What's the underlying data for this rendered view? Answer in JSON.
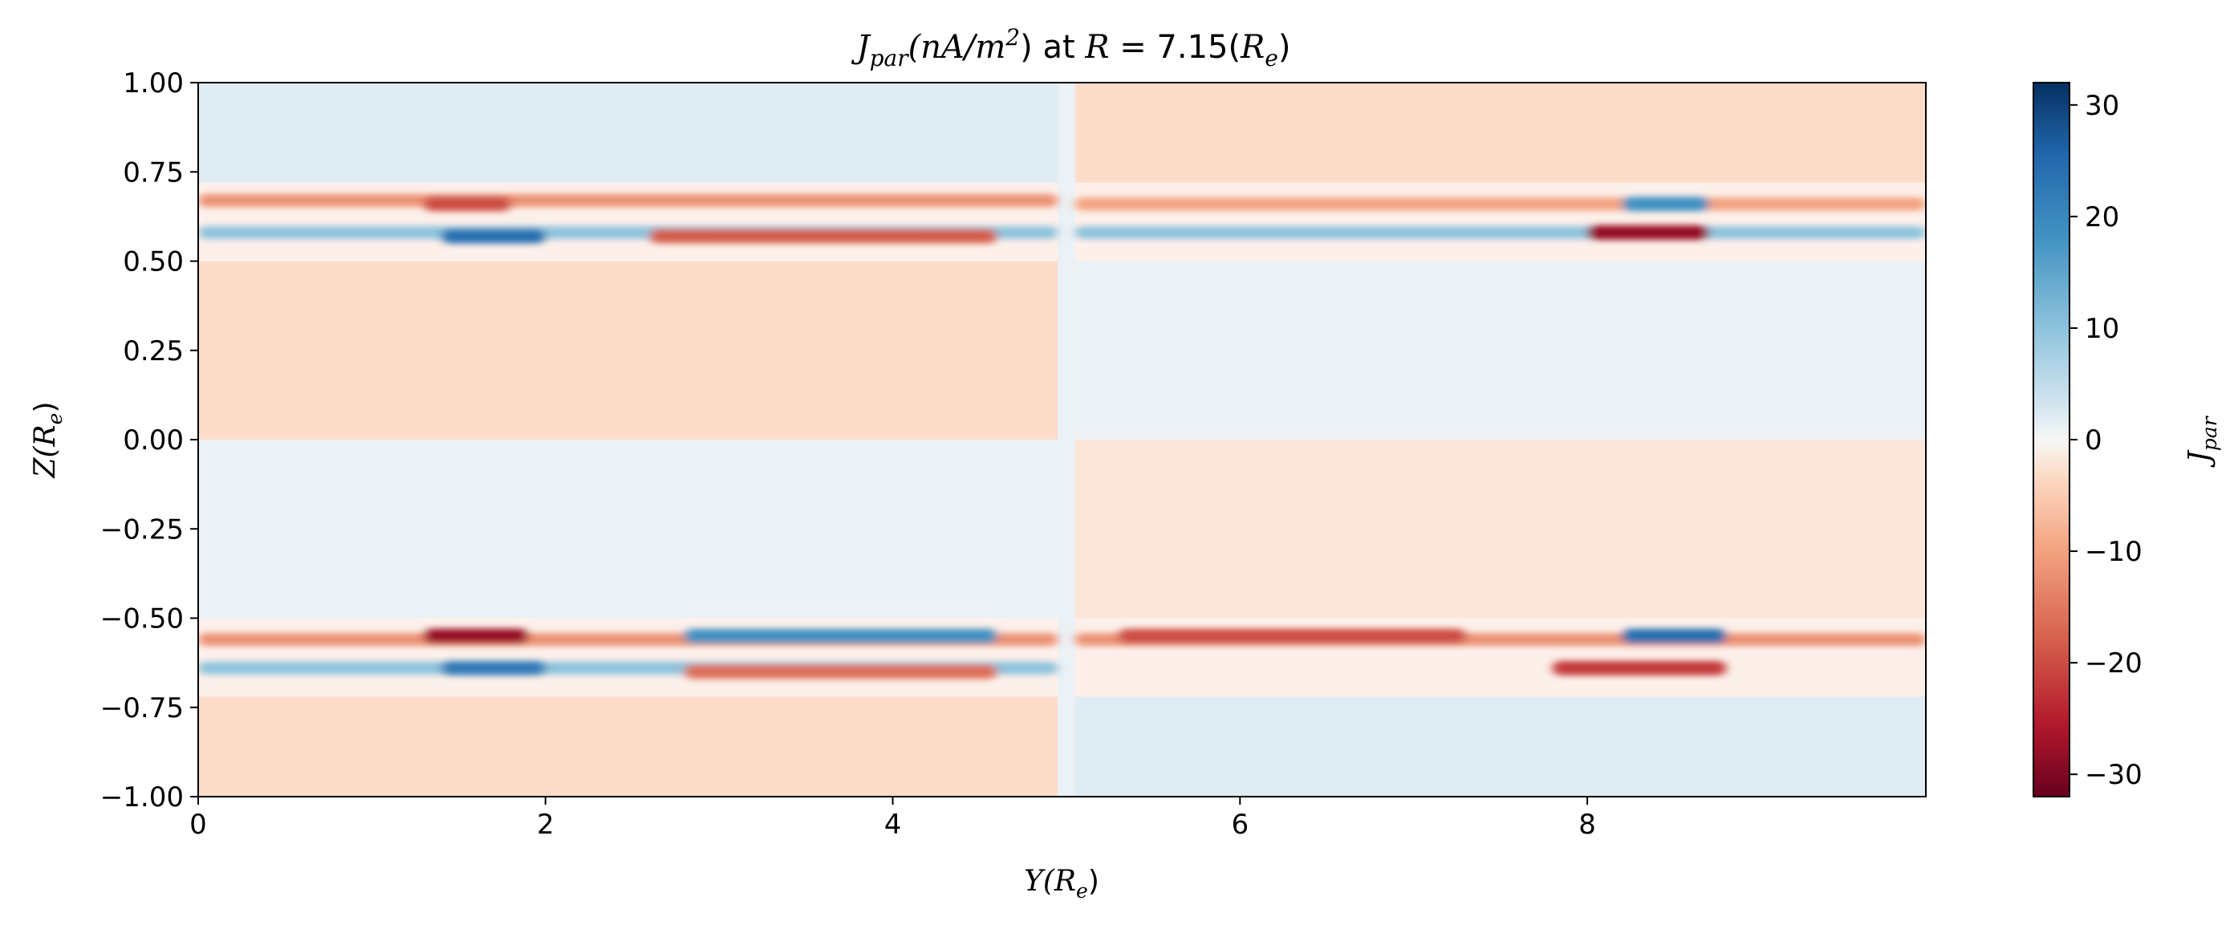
{
  "chart_data": {
    "type": "heatmap",
    "title_parts": {
      "symbol": "J",
      "symbol_sub": "par",
      "unit": "(nA/m",
      "unit_sup": "2",
      "unit_end": ")",
      "middle": " at ",
      "r_symbol": "R",
      "r_eq": " = 7.15(",
      "r_re": "R",
      "r_re_sub": "e",
      "r_end": ")"
    },
    "xlabel_parts": {
      "main": "Y(",
      "re": "R",
      "sub": "e",
      "end": ")"
    },
    "ylabel_parts": {
      "main": "Z(",
      "re": "R",
      "sub": "e",
      "end": ")"
    },
    "colorbar_label_parts": {
      "main": "J",
      "sub": "par"
    },
    "xlim": [
      0,
      9.95
    ],
    "ylim": [
      -1,
      1
    ],
    "x_ticks": [
      0,
      2,
      4,
      6,
      8
    ],
    "x_tick_labels": [
      "0",
      "2",
      "4",
      "6",
      "8"
    ],
    "y_ticks": [
      1.0,
      0.75,
      0.5,
      0.25,
      0.0,
      -0.25,
      -0.5,
      -0.75,
      -1.0
    ],
    "y_tick_labels": [
      "1.00",
      "0.75",
      "0.50",
      "0.25",
      "0.00",
      "−0.25",
      "−0.50",
      "−0.75",
      "−1.00"
    ],
    "colorbar": {
      "cmap": "RdBu",
      "vmin": -32,
      "vmax": 32,
      "ticks": [
        30,
        20,
        10,
        0,
        -10,
        -20,
        -30
      ],
      "tick_labels": [
        "30",
        "20",
        "10",
        "0",
        "−10",
        "−20",
        "−30"
      ],
      "low_color": "#67001f",
      "high_color": "#053061"
    },
    "grid": false,
    "field_features": [
      {
        "y_range": [
          0.0,
          4.95
        ],
        "z": 0.67,
        "value": -12
      },
      {
        "y_range": [
          0.0,
          4.95
        ],
        "z": 0.58,
        "value": 10
      },
      {
        "y_range": [
          1.3,
          1.8
        ],
        "z": 0.66,
        "value": -20
      },
      {
        "y_range": [
          1.4,
          2.0
        ],
        "z": 0.57,
        "value": 24
      },
      {
        "y_range": [
          2.6,
          4.6
        ],
        "z": 0.57,
        "value": -18
      },
      {
        "y_range": [
          5.05,
          9.95
        ],
        "z": 0.66,
        "value": -10
      },
      {
        "y_range": [
          5.05,
          9.95
        ],
        "z": 0.58,
        "value": 10
      },
      {
        "y_range": [
          8.0,
          8.7
        ],
        "z": 0.58,
        "value": -28
      },
      {
        "y_range": [
          8.2,
          8.7
        ],
        "z": 0.66,
        "value": 18
      },
      {
        "y_range": [
          0.0,
          4.95
        ],
        "z": -0.56,
        "value": -12
      },
      {
        "y_range": [
          1.3,
          1.9
        ],
        "z": -0.55,
        "value": -28
      },
      {
        "y_range": [
          0.0,
          4.95
        ],
        "z": -0.64,
        "value": 10
      },
      {
        "y_range": [
          1.4,
          2.0
        ],
        "z": -0.64,
        "value": 22
      },
      {
        "y_range": [
          2.8,
          4.6
        ],
        "z": -0.55,
        "value": 18
      },
      {
        "y_range": [
          2.8,
          4.6
        ],
        "z": -0.65,
        "value": -16
      },
      {
        "y_range": [
          5.05,
          9.95
        ],
        "z": -0.56,
        "value": -12
      },
      {
        "y_range": [
          5.3,
          7.3
        ],
        "z": -0.55,
        "value": -20
      },
      {
        "y_range": [
          8.2,
          8.8
        ],
        "z": -0.55,
        "value": 24
      },
      {
        "y_range": [
          7.8,
          8.8
        ],
        "z": -0.64,
        "value": -22
      }
    ]
  }
}
